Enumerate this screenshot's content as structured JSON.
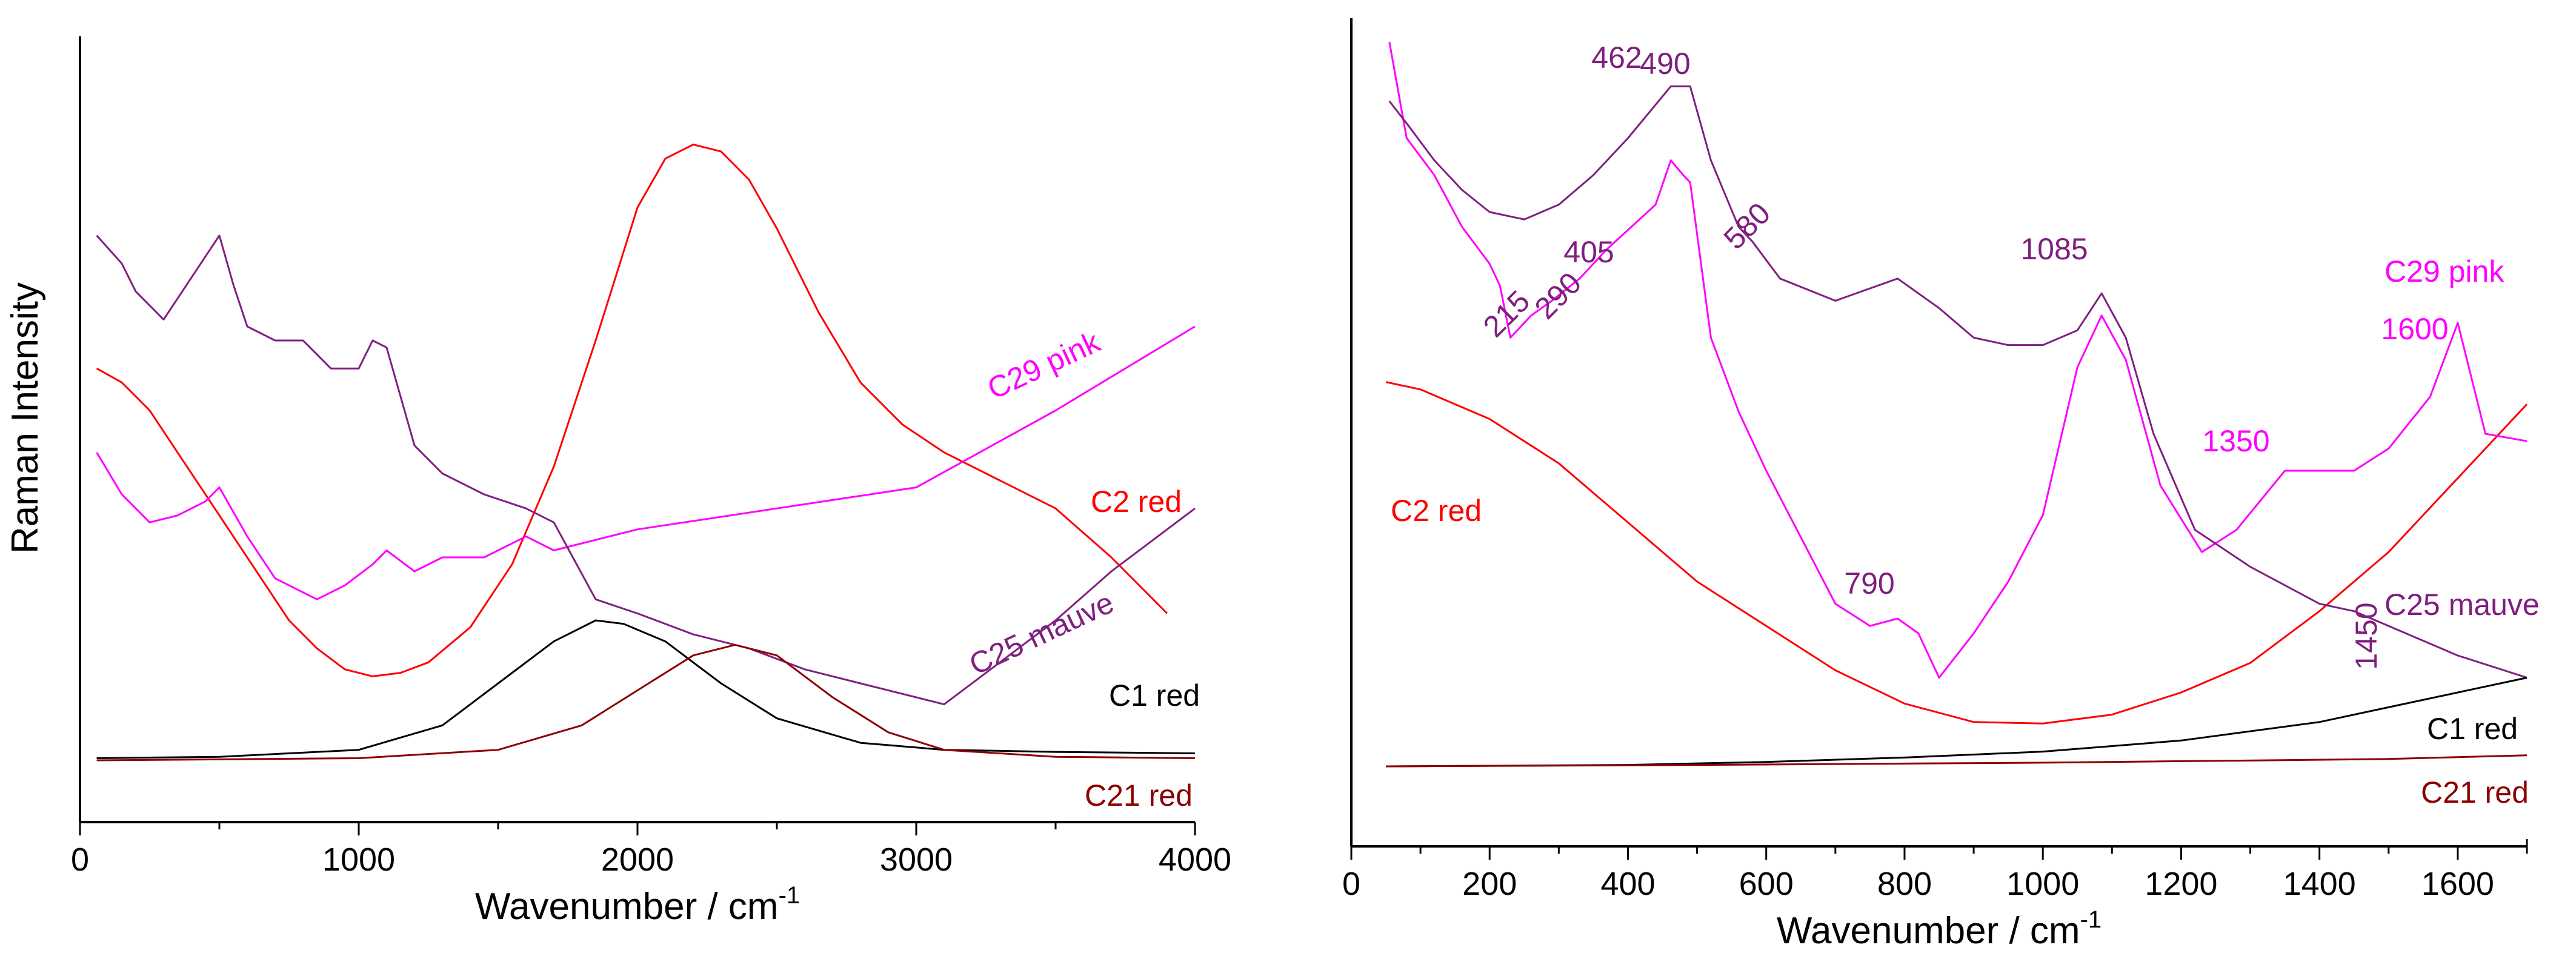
{
  "chart_data": [
    {
      "type": "line",
      "title": "",
      "xlabel": "Wavenumber / cm",
      "xlabel_superscript": "-1",
      "ylabel": "Raman Intensity",
      "xlim": [
        0,
        4000
      ],
      "ylim": [
        0,
        100
      ],
      "xticks": [
        "0",
        "1000",
        "2000",
        "3000",
        "4000"
      ],
      "xtick_values": [
        0,
        1000,
        2000,
        3000,
        4000
      ],
      "series": [
        {
          "name": "C2 red",
          "color": "#ff0000",
          "x": [
            60,
            150,
            250,
            350,
            450,
            550,
            650,
            750,
            850,
            950,
            1050,
            1150,
            1250,
            1400,
            1550,
            1700,
            1850,
            2000,
            2100,
            2200,
            2300,
            2400,
            2500,
            2650,
            2800,
            2950,
            3100,
            3300,
            3500,
            3700,
            3900
          ],
          "y": [
            56,
            54,
            50,
            44,
            38,
            32,
            26,
            20,
            16,
            13,
            12,
            12.5,
            14,
            19,
            28,
            42,
            60,
            79,
            86,
            88,
            87,
            83,
            76,
            64,
            54,
            48,
            44,
            40,
            36,
            29,
            21
          ]
        },
        {
          "name": "C29 pink",
          "color": "#ff00ff",
          "x": [
            60,
            150,
            250,
            350,
            450,
            500,
            600,
            700,
            850,
            950,
            1050,
            1100,
            1200,
            1300,
            1450,
            1600,
            1700,
            2000,
            2500,
            3000,
            3500,
            4000
          ],
          "y": [
            44,
            38,
            34,
            35,
            37,
            39,
            32,
            26,
            23,
            25,
            28,
            30,
            27,
            29,
            29,
            32,
            30,
            33,
            36,
            39,
            50,
            62
          ]
        },
        {
          "name": "C25 mauve",
          "color": "#7f1f7f",
          "x": [
            60,
            150,
            200,
            300,
            400,
            500,
            550,
            600,
            700,
            800,
            900,
            1000,
            1050,
            1100,
            1200,
            1300,
            1450,
            1600,
            1700,
            1850,
            2000,
            2200,
            2400,
            2600,
            2800,
            3000,
            3100,
            3300,
            3500,
            3700,
            4000
          ],
          "y": [
            75,
            71,
            67,
            63,
            69,
            75,
            68,
            62,
            60,
            60,
            56,
            56,
            60,
            59,
            45,
            41,
            38,
            36,
            34,
            23,
            21,
            18,
            16,
            13,
            11,
            9,
            8,
            14,
            20,
            27,
            36
          ]
        },
        {
          "name": "C1 red",
          "color": "#000000",
          "x": [
            60,
            500,
            1000,
            1300,
            1500,
            1700,
            1850,
            1950,
            2100,
            2300,
            2500,
            2800,
            3100,
            3500,
            4000
          ],
          "y": [
            0.3,
            0.5,
            1.5,
            5,
            11,
            17,
            20,
            19.5,
            17,
            11,
            6,
            2.5,
            1.5,
            1.2,
            1
          ]
        },
        {
          "name": "C21 red",
          "color": "#8b0000",
          "x": [
            60,
            1000,
            1500,
            1800,
            2000,
            2200,
            2350,
            2500,
            2700,
            2900,
            3100,
            3500,
            4000
          ],
          "y": [
            0,
            0.3,
            1.5,
            5,
            10,
            15,
            16.5,
            15,
            9,
            4,
            1.5,
            0.5,
            0.3
          ]
        }
      ],
      "series_labels": [
        {
          "text": "C29 pink",
          "color": "#ff00ff"
        },
        {
          "text": "C2 red",
          "color": "#ff0000"
        },
        {
          "text": "C25 mauve",
          "color": "#7f1f7f"
        },
        {
          "text": "C1 red",
          "color": "#000000"
        },
        {
          "text": "C21 red",
          "color": "#8b0000"
        }
      ]
    },
    {
      "type": "line",
      "title": "",
      "xlabel": "Wavenumber / cm",
      "xlabel_superscript": "-1",
      "ylabel": "",
      "xlim": [
        0,
        1700
      ],
      "ylim": [
        0,
        100
      ],
      "xticks": [
        "0",
        "200",
        "400",
        "600",
        "800",
        "1000",
        "1200",
        "1400",
        "1600"
      ],
      "xtick_values": [
        0,
        200,
        400,
        600,
        800,
        1000,
        1200,
        1400,
        1600
      ],
      "series": [
        {
          "name": "C2 red",
          "color": "#ff0000",
          "x": [
            50,
            100,
            200,
            300,
            400,
            500,
            600,
            700,
            800,
            900,
            1000,
            1100,
            1200,
            1300,
            1400,
            1500,
            1600,
            1700
          ],
          "y": [
            52,
            51,
            47,
            41,
            33,
            25,
            19,
            13,
            8.5,
            6,
            5.8,
            7,
            10,
            14,
            21,
            29,
            39,
            49
          ]
        },
        {
          "name": "C29 pink",
          "color": "#ff00ff",
          "x": [
            55,
            80,
            120,
            160,
            200,
            215,
            230,
            260,
            290,
            330,
            370,
            405,
            440,
            462,
            480,
            490,
            520,
            560,
            600,
            650,
            700,
            750,
            790,
            820,
            850,
            900,
            950,
            1000,
            1050,
            1085,
            1120,
            1170,
            1230,
            1280,
            1350,
            1400,
            1450,
            1500,
            1560,
            1600,
            1640,
            1700
          ],
          "y": [
            98,
            85,
            80,
            73,
            68,
            65,
            58,
            61,
            63,
            66,
            70,
            73,
            76,
            82,
            80,
            79,
            58,
            48,
            40,
            31,
            22,
            19,
            20,
            18,
            12,
            18,
            25,
            34,
            54,
            61,
            55,
            38,
            29,
            32,
            40,
            40,
            40,
            43,
            50,
            60,
            45,
            44
          ]
        },
        {
          "name": "C25 mauve",
          "color": "#7f1f7f",
          "x": [
            55,
            80,
            120,
            160,
            200,
            250,
            300,
            350,
            400,
            462,
            490,
            520,
            560,
            580,
            620,
            700,
            790,
            850,
            900,
            950,
            1000,
            1050,
            1085,
            1120,
            1160,
            1220,
            1300,
            1400,
            1450,
            1500,
            1600,
            1700
          ],
          "y": [
            90,
            87,
            82,
            78,
            75,
            74,
            76,
            80,
            85,
            92,
            92,
            82,
            73,
            71,
            66,
            63,
            66,
            62,
            58,
            57,
            57,
            59,
            64,
            58,
            45,
            32,
            27,
            22,
            21,
            19,
            15,
            12
          ]
        },
        {
          "name": "C1 red",
          "color": "#000000",
          "x": [
            50,
            400,
            600,
            800,
            1000,
            1200,
            1400,
            1500,
            1600,
            1700
          ],
          "y": [
            0,
            0.2,
            0.6,
            1.2,
            2,
            3.5,
            6,
            8,
            10,
            12
          ]
        },
        {
          "name": "C21 red",
          "color": "#8b0000",
          "x": [
            50,
            500,
            1000,
            1500,
            1700
          ],
          "y": [
            0,
            0.2,
            0.5,
            1,
            1.5
          ]
        }
      ],
      "series_labels": [
        {
          "text": "C29 pink",
          "color": "#ff00ff"
        },
        {
          "text": "C2 red",
          "color": "#ff0000"
        },
        {
          "text": "C25 mauve",
          "color": "#7f1f7f"
        },
        {
          "text": "C1 red",
          "color": "#000000"
        },
        {
          "text": "C21 red",
          "color": "#8b0000"
        }
      ],
      "annotations": [
        {
          "text": "462",
          "color": "#7f1f7f",
          "x": 462
        },
        {
          "text": "490",
          "color": "#7f1f7f",
          "x": 490
        },
        {
          "text": "580",
          "color": "#7f1f7f",
          "x": 580
        },
        {
          "text": "1085",
          "color": "#7f1f7f",
          "x": 1085
        },
        {
          "text": "405",
          "color": "#7f1f7f",
          "x": 405
        },
        {
          "text": "290",
          "color": "#7f1f7f",
          "x": 290
        },
        {
          "text": "215",
          "color": "#7f1f7f",
          "x": 215
        },
        {
          "text": "790",
          "color": "#7f1f7f",
          "x": 790
        },
        {
          "text": "1450",
          "color": "#7f1f7f",
          "x": 1450
        },
        {
          "text": "1350",
          "color": "#ff00ff",
          "x": 1350
        },
        {
          "text": "1600",
          "color": "#ff00ff",
          "x": 1600
        }
      ]
    }
  ]
}
